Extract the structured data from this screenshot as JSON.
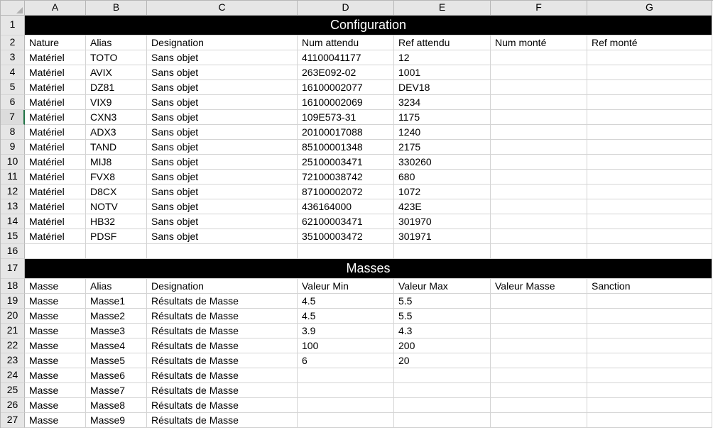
{
  "columns": [
    "A",
    "B",
    "C",
    "D",
    "E",
    "F",
    "G"
  ],
  "row_count": 27,
  "selected_row": 7,
  "tall_rows": [
    1,
    17
  ],
  "section1": {
    "row": 1,
    "title": "Configuration",
    "headers_row": 2,
    "headers": [
      "Nature",
      "Alias",
      "Designation",
      "Num attendu",
      "Ref attendu",
      "Num monté",
      "Ref monté"
    ],
    "data_start": 3,
    "rows": [
      [
        "Matériel",
        "TOTO",
        "Sans objet",
        "41100041177",
        "12",
        "",
        ""
      ],
      [
        "Matériel",
        "AVIX",
        "Sans objet",
        "263E092-02",
        "1001",
        "",
        ""
      ],
      [
        "Matériel",
        "DZ81",
        "Sans objet",
        "16100002077",
        "DEV18",
        "",
        ""
      ],
      [
        "Matériel",
        "VIX9",
        "Sans objet",
        "16100002069",
        "3234",
        "",
        ""
      ],
      [
        "Matériel",
        "CXN3",
        "Sans objet",
        "109E573-31",
        "1175",
        "",
        ""
      ],
      [
        "Matériel",
        "ADX3",
        "Sans objet",
        "20100017088",
        "1240",
        "",
        ""
      ],
      [
        "Matériel",
        "TAND",
        "Sans objet",
        "85100001348",
        "2175",
        "",
        ""
      ],
      [
        "Matériel",
        "MIJ8",
        "Sans objet",
        "25100003471",
        "330260",
        "",
        ""
      ],
      [
        "Matériel",
        "FVX8",
        "Sans objet",
        "72100038742",
        "680",
        "",
        ""
      ],
      [
        "Matériel",
        "D8CX",
        "Sans objet",
        "87100002072",
        "1072",
        "",
        ""
      ],
      [
        "Matériel",
        "NOTV",
        "Sans objet",
        "436164000",
        "423E",
        "",
        ""
      ],
      [
        "Matériel",
        "HB32",
        "Sans objet",
        "62100003471",
        "301970",
        "",
        ""
      ],
      [
        "Matériel",
        "PDSF",
        "Sans objet",
        "35100003472",
        "301971",
        "",
        ""
      ]
    ]
  },
  "blank_row": 16,
  "section2": {
    "row": 17,
    "title": "Masses",
    "headers_row": 18,
    "headers": [
      "Masse",
      "Alias",
      "Designation",
      "Valeur Min",
      "Valeur Max",
      "Valeur Masse",
      "Sanction"
    ],
    "data_start": 19,
    "rows": [
      [
        "Masse",
        "Masse1",
        "Résultats de Masse",
        "4.5",
        "5.5",
        "",
        ""
      ],
      [
        "Masse",
        "Masse2",
        "Résultats de Masse",
        "4.5",
        "5.5",
        "",
        ""
      ],
      [
        "Masse",
        "Masse3",
        "Résultats de Masse",
        "3.9",
        "4.3",
        "",
        ""
      ],
      [
        "Masse",
        "Masse4",
        "Résultats de Masse",
        "100",
        "200",
        "",
        ""
      ],
      [
        "Masse",
        "Masse5",
        "Résultats de Masse",
        "6",
        "20",
        "",
        ""
      ],
      [
        "Masse",
        "Masse6",
        "Résultats de Masse",
        "",
        "",
        "",
        ""
      ],
      [
        "Masse",
        "Masse7",
        "Résultats de Masse",
        "",
        "",
        "",
        ""
      ],
      [
        "Masse",
        "Masse8",
        "Résultats de Masse",
        "",
        "",
        "",
        ""
      ],
      [
        "Masse",
        "Masse9",
        "Résultats de Masse",
        "",
        "",
        "",
        ""
      ]
    ]
  },
  "style": {
    "section_bg": "#000000",
    "section_fg": "#ffffff",
    "header_bg": "#e6e6e6",
    "grid_line": "#d4d4d4",
    "header_line": "#b7b7b7",
    "selection_accent": "#217346"
  }
}
